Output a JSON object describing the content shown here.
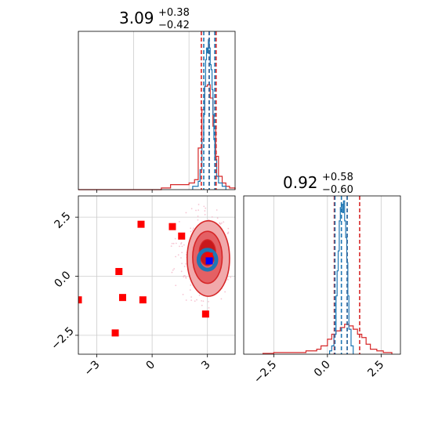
{
  "chart_data": {
    "type": "corner",
    "colors": {
      "red": "#d62728",
      "blue": "#1f77b4",
      "marker_red": "#ff0000",
      "marker_blue": "#0000ff",
      "grid": "#cccccc",
      "scatter": "#f4b6c8"
    },
    "panels": [
      {
        "id": "hist-param-1",
        "type": "histogram",
        "title": {
          "main": "3.09",
          "sup": "+0.38",
          "sub": "−0.42"
        },
        "xlim": [
          -4.0,
          4.5
        ],
        "grid": true,
        "red_dashed_lines": [
          2.67,
          3.09,
          3.47
        ],
        "blue_dashed_lines": [
          2.8,
          3.1,
          3.4
        ],
        "red_hist": {
          "x": [
            -4.0,
            0.5,
            1.0,
            1.5,
            2.0,
            2.3,
            2.5,
            2.7,
            2.85,
            3.0,
            3.15,
            3.3,
            3.45,
            3.6,
            3.8,
            4.0,
            4.2,
            4.5
          ],
          "y": [
            0,
            0.01,
            0.03,
            0.03,
            0.04,
            0.06,
            0.25,
            0.48,
            0.62,
            0.63,
            0.55,
            0.38,
            0.2,
            0.08,
            0.04,
            0.02,
            0.01
          ]
        },
        "blue_hist": {
          "x": [
            2.2,
            2.5,
            2.6,
            2.7,
            2.8,
            2.85,
            2.9,
            2.95,
            3.0,
            3.05,
            3.1,
            3.15,
            3.2,
            3.25,
            3.3,
            3.35,
            3.4,
            3.5,
            3.6,
            3.8,
            4.0
          ],
          "y": [
            0.02,
            0.05,
            0.12,
            0.3,
            0.45,
            0.62,
            0.78,
            0.85,
            0.82,
            0.9,
            0.85,
            0.75,
            0.72,
            0.6,
            0.45,
            0.3,
            0.18,
            0.08,
            0.04,
            0.02
          ]
        }
      },
      {
        "id": "scatter-2d",
        "type": "scatter",
        "xlim": [
          -4.0,
          4.5
        ],
        "ylim": [
          -3.3,
          3.4
        ],
        "xticks": [
          -3,
          0,
          3
        ],
        "xtick_labels": [
          "−3",
          "0",
          "3"
        ],
        "yticks": [
          -2.5,
          0.0,
          2.5
        ],
        "ytick_labels": [
          "−2.5",
          "0.0",
          "2.5"
        ],
        "grid": true,
        "red_squares": [
          {
            "x": -4.0,
            "y": -1.0
          },
          {
            "x": -2.0,
            "y": -2.4
          },
          {
            "x": -1.8,
            "y": 0.2
          },
          {
            "x": -1.6,
            "y": -0.9
          },
          {
            "x": -0.6,
            "y": 2.2
          },
          {
            "x": -0.5,
            "y": -1.0
          },
          {
            "x": 1.1,
            "y": 2.1
          },
          {
            "x": 1.6,
            "y": 1.7
          },
          {
            "x": 2.9,
            "y": -1.6
          },
          {
            "x": 3.1,
            "y": 0.85
          }
        ],
        "blue_square": {
          "x": 3.1,
          "y": 0.65
        },
        "contours": [
          {
            "level": "outer",
            "cx": 3.05,
            "cy": 0.75,
            "rx": 1.15,
            "ry": 1.6
          },
          {
            "level": "mid",
            "cx": 3.0,
            "cy": 0.8,
            "rx": 0.8,
            "ry": 1.1
          },
          {
            "level": "inner",
            "cx": 3.0,
            "cy": 1.0,
            "rx": 0.45,
            "ry": 0.55
          },
          {
            "level": "blue",
            "cx": 3.0,
            "cy": 0.7,
            "rx": 0.48,
            "ry": 0.42
          }
        ]
      },
      {
        "id": "hist-param-2",
        "type": "histogram",
        "title": {
          "main": "0.92",
          "sup": "+0.58",
          "sub": "−0.60"
        },
        "xlim": [
          -3.9,
          3.4
        ],
        "xticks": [
          -2.5,
          0.0,
          2.5
        ],
        "xtick_labels": [
          "−2.5",
          "0.0",
          "2.5"
        ],
        "grid": true,
        "red_dashed_lines": [
          0.32,
          0.92,
          1.5
        ],
        "blue_dashed_lines": [
          0.35,
          0.65,
          0.92
        ],
        "red_hist": {
          "x": [
            -3.0,
            -2.5,
            -1.0,
            -0.5,
            -0.3,
            0.0,
            0.2,
            0.4,
            0.6,
            0.8,
            1.0,
            1.2,
            1.4,
            1.6,
            1.8,
            2.0,
            2.3,
            2.6,
            3.0
          ],
          "y": [
            0.005,
            0.01,
            0.02,
            0.03,
            0.05,
            0.09,
            0.12,
            0.14,
            0.16,
            0.18,
            0.17,
            0.15,
            0.12,
            0.1,
            0.06,
            0.03,
            0.02,
            0.01
          ]
        },
        "blue_hist": {
          "x": [
            0.1,
            0.2,
            0.3,
            0.4,
            0.45,
            0.5,
            0.55,
            0.6,
            0.65,
            0.7,
            0.75,
            0.8,
            0.85,
            0.9,
            0.95,
            1.0,
            1.1,
            1.2
          ],
          "y": [
            0.02,
            0.05,
            0.12,
            0.35,
            0.5,
            0.62,
            0.8,
            0.88,
            0.9,
            0.85,
            0.92,
            0.8,
            0.7,
            0.55,
            0.35,
            0.15,
            0.05
          ]
        }
      }
    ]
  }
}
